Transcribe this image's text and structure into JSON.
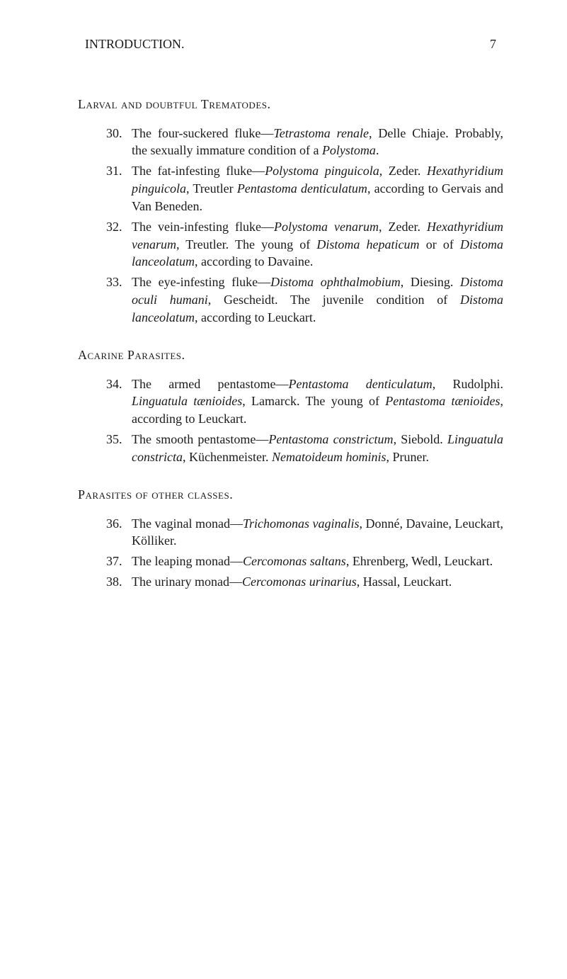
{
  "header": {
    "title": "INTRODUCTION.",
    "pageNumber": "7"
  },
  "sections": [
    {
      "heading": "Larval and doubtful Trematodes.",
      "entries": [
        {
          "number": "30.",
          "html": "The four-suckered fluke—<span class=\"italic\">Tetrastoma renale</span>, Delle Chiaje. Probably, the sexually immature condition of a <span class=\"italic\">Polystoma</span>."
        },
        {
          "number": "31.",
          "html": "The fat-infesting fluke—<span class=\"italic\">Polystoma pinguicola</span>, Zeder. <span class=\"italic\">Hexathyridium pinguicola</span>, Treutler <span class=\"italic\">Pentastoma denticulatum</span>, according to Gervais and Van Beneden."
        },
        {
          "number": "32.",
          "html": "The vein-infesting fluke—<span class=\"italic\">Polystoma venarum</span>, Zeder. <span class=\"italic\">Hexathyridium venarum</span>, Treutler. The young of <span class=\"italic\">Distoma hepaticum</span> or of <span class=\"italic\">Distoma lanceolatum</span>, according to Davaine."
        },
        {
          "number": "33.",
          "html": "The eye-infesting fluke—<span class=\"italic\">Distoma ophthalmobium</span>, Diesing. <span class=\"italic\">Distoma oculi humani</span>, Gescheidt. The juvenile condition of <span class=\"italic\">Distoma lanceolatum</span>, according to Leuckart."
        }
      ]
    },
    {
      "heading": "Acarine Parasites.",
      "entries": [
        {
          "number": "34.",
          "html": "The armed pentastome—<span class=\"italic\">Pentastoma denticulatum</span>, Rudolphi. <span class=\"italic\">Linguatula tænioides</span>, Lamarck. The young of <span class=\"italic\">Pentastoma tænioides</span>, according to Leuckart."
        },
        {
          "number": "35.",
          "html": "The smooth pentastome—<span class=\"italic\">Pentastoma constrictum</span>, Siebold. <span class=\"italic\">Linguatula constricta</span>, Küchenmeister. <span class=\"italic\">Nematoideum hominis</span>, Pruner."
        }
      ]
    },
    {
      "heading": "Parasites of other classes.",
      "entries": [
        {
          "number": "36.",
          "html": "The vaginal monad—<span class=\"italic\">Trichomonas vaginalis</span>, Donné, Davaine, Leuckart, Kölliker."
        },
        {
          "number": "37.",
          "html": "The leaping monad—<span class=\"italic\">Cercomonas saltans</span>, Ehrenberg, Wedl, Leuckart."
        },
        {
          "number": "38.",
          "html": "The urinary monad—<span class=\"italic\">Cercomonas urinarius</span>, Hassal, Leuckart."
        }
      ]
    }
  ]
}
